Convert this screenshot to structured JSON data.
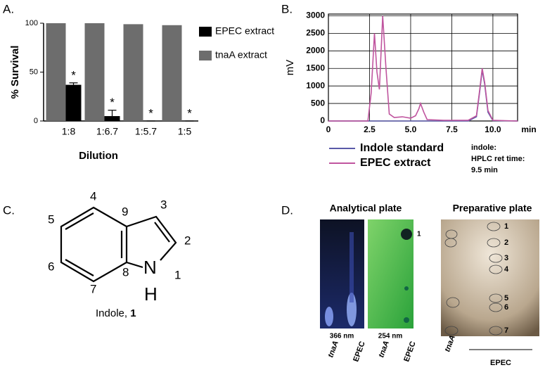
{
  "panel_labels": [
    "A.",
    "B.",
    "C.",
    "D."
  ],
  "chart_data": [
    {
      "type": "bar",
      "ylabel": "% Survival",
      "xlabel": "Dilution",
      "categories": [
        "1:8",
        "1:6.7",
        "1:5.7",
        "1:5"
      ],
      "series": [
        {
          "name": "EPEC extract",
          "color": "#000000",
          "values": [
            37,
            5,
            0,
            0
          ],
          "errors": [
            2,
            6,
            0,
            0
          ],
          "annotations": [
            "*",
            "*",
            "*",
            "*"
          ]
        },
        {
          "name": "tnaA extract",
          "color": "#6d6d6d",
          "values": [
            100,
            100,
            99,
            98
          ]
        }
      ],
      "ylim": [
        0,
        100
      ],
      "yticks": [
        0,
        50,
        100
      ],
      "legend": "right"
    },
    {
      "type": "line",
      "ylabel": "mV",
      "xlabel": "min",
      "series": [
        {
          "name": "Indole standard",
          "color": "#5a5aa8",
          "x": [
            0,
            8.5,
            9.0,
            9.2,
            9.35,
            9.5,
            9.7,
            10.0,
            11.5
          ],
          "values": [
            0,
            0,
            120,
            850,
            1450,
            1050,
            250,
            10,
            0
          ]
        },
        {
          "name": "EPEC extract",
          "color": "#c0559f",
          "x": [
            0,
            2.4,
            2.6,
            2.8,
            2.95,
            3.1,
            3.3,
            3.5,
            3.7,
            4.0,
            4.5,
            5.0,
            5.3,
            5.5,
            5.6,
            5.8,
            6.0,
            7.0,
            8.5,
            9.0,
            9.2,
            9.35,
            9.5,
            9.7,
            10.0,
            11.5
          ],
          "values": [
            0,
            0,
            800,
            2500,
            1400,
            900,
            3000,
            1500,
            200,
            100,
            120,
            80,
            150,
            350,
            500,
            250,
            40,
            20,
            20,
            150,
            900,
            1500,
            1100,
            300,
            20,
            0
          ]
        }
      ],
      "xlim": [
        0,
        11.5
      ],
      "xticks": [
        0,
        2.5,
        {
          "value": 5,
          "label": "5.0"
        },
        7.5,
        {
          "value": 10,
          "label": "10.0"
        }
      ],
      "ylim": [
        0,
        3050
      ],
      "yticks": [
        0,
        500,
        1000,
        1500,
        2000,
        2500,
        3000
      ],
      "grid": true,
      "legend": "bottom",
      "annotations": [
        "indole:",
        "HPLC ret time:",
        "9.5 min"
      ]
    }
  ],
  "structure": {
    "positions": [
      "1",
      "2",
      "3",
      "4",
      "5",
      "6",
      "7",
      "8",
      "9"
    ],
    "atoms": [
      "N",
      "H"
    ],
    "caption": "Indole,",
    "compound": "1"
  },
  "plates": {
    "analytical": {
      "title": "Analytical plate",
      "wavelengths": [
        "366 nm",
        "254 nm"
      ],
      "spot": "1",
      "lanes": [
        "tnaA",
        "EPEC",
        "tnaA",
        "EPEC"
      ]
    },
    "preparative": {
      "title": "Preparative plate",
      "spots": [
        "1",
        "2",
        "3",
        "4",
        "5",
        "6",
        "7"
      ],
      "lanes": [
        "tnaA",
        "EPEC"
      ]
    }
  }
}
